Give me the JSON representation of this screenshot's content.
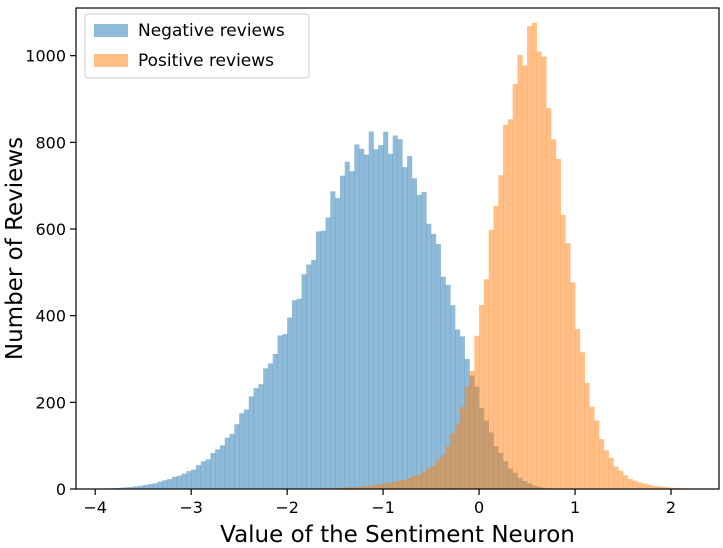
{
  "chart_data": {
    "type": "histogram",
    "xlabel": "Value of the Sentiment Neuron",
    "ylabel": "Number of Reviews",
    "xlim": [
      -4.2,
      2.5
    ],
    "ylim": [
      0,
      1110
    ],
    "bin_width": 0.05,
    "xticks": [
      -4,
      -3,
      -2,
      -1,
      0,
      1,
      2
    ],
    "yticks": [
      0,
      200,
      400,
      600,
      800,
      1000
    ],
    "xtick_labels": [
      "−4",
      "−3",
      "−2",
      "−1",
      "0",
      "1",
      "2"
    ],
    "ytick_labels": [
      "0",
      "200",
      "400",
      "600",
      "800",
      "1000"
    ],
    "legend_position": "top-left",
    "alpha": 0.5,
    "series": [
      {
        "name": "Negative reviews",
        "color": "#1f77b4",
        "anchors": [
          [
            -4.05,
            0
          ],
          [
            -3.95,
            1
          ],
          [
            -3.8,
            2
          ],
          [
            -3.6,
            5
          ],
          [
            -3.4,
            12
          ],
          [
            -3.2,
            25
          ],
          [
            -3.0,
            42
          ],
          [
            -2.8,
            75
          ],
          [
            -2.6,
            120
          ],
          [
            -2.5,
            160
          ],
          [
            -2.4,
            200
          ],
          [
            -2.3,
            240
          ],
          [
            -2.2,
            280
          ],
          [
            -2.1,
            330
          ],
          [
            -2.0,
            380
          ],
          [
            -1.9,
            440
          ],
          [
            -1.8,
            500
          ],
          [
            -1.7,
            560
          ],
          [
            -1.6,
            620
          ],
          [
            -1.5,
            680
          ],
          [
            -1.4,
            730
          ],
          [
            -1.3,
            770
          ],
          [
            -1.2,
            790
          ],
          [
            -1.1,
            800
          ],
          [
            -1.0,
            800
          ],
          [
            -0.9,
            800
          ],
          [
            -0.85,
            810
          ],
          [
            -0.8,
            780
          ],
          [
            -0.7,
            735
          ],
          [
            -0.6,
            680
          ],
          [
            -0.5,
            610
          ],
          [
            -0.4,
            530
          ],
          [
            -0.3,
            440
          ],
          [
            -0.2,
            360
          ],
          [
            -0.1,
            285
          ],
          [
            0.0,
            210
          ],
          [
            0.1,
            140
          ],
          [
            0.2,
            90
          ],
          [
            0.3,
            55
          ],
          [
            0.4,
            30
          ],
          [
            0.5,
            15
          ],
          [
            0.6,
            6
          ],
          [
            0.7,
            2
          ],
          [
            0.8,
            0
          ]
        ]
      },
      {
        "name": "Positive reviews",
        "color": "#ff7f0e",
        "anchors": [
          [
            -1.8,
            0
          ],
          [
            -1.5,
            2
          ],
          [
            -1.2,
            6
          ],
          [
            -1.0,
            12
          ],
          [
            -0.8,
            20
          ],
          [
            -0.6,
            35
          ],
          [
            -0.4,
            70
          ],
          [
            -0.3,
            110
          ],
          [
            -0.2,
            170
          ],
          [
            -0.1,
            250
          ],
          [
            0.0,
            380
          ],
          [
            0.1,
            540
          ],
          [
            0.2,
            700
          ],
          [
            0.3,
            850
          ],
          [
            0.4,
            960
          ],
          [
            0.5,
            1030
          ],
          [
            0.55,
            1060
          ],
          [
            0.6,
            1080
          ],
          [
            0.65,
            1000
          ],
          [
            0.7,
            930
          ],
          [
            0.8,
            780
          ],
          [
            0.9,
            610
          ],
          [
            1.0,
            420
          ],
          [
            1.1,
            270
          ],
          [
            1.2,
            170
          ],
          [
            1.3,
            100
          ],
          [
            1.4,
            60
          ],
          [
            1.5,
            35
          ],
          [
            1.6,
            20
          ],
          [
            1.8,
            8
          ],
          [
            2.0,
            3
          ],
          [
            2.2,
            1
          ],
          [
            2.3,
            0
          ]
        ]
      }
    ]
  }
}
